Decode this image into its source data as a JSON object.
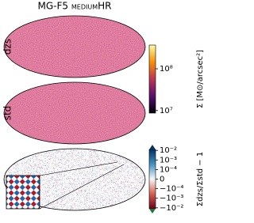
{
  "chart_data": [
    {
      "type": "map",
      "title": "MG-F5 mediumHR",
      "row_label": "dzs"
    },
    {
      "type": "map",
      "row_label": "std"
    },
    {
      "type": "colorbar",
      "colormap": "inferno",
      "log_scale": true,
      "ylim": [
        8700000,
        370000000
      ],
      "yticks": [
        {
          "value": 10000000,
          "label": "10⁷"
        },
        {
          "value": 100000000,
          "label": "10⁸"
        }
      ],
      "label": "Σ [M⊙/arcsec²]"
    },
    {
      "type": "colorbar",
      "colormap": "RdBu",
      "symlog_scale": true,
      "linthresh": 0.0001,
      "ylim": [
        -0.0125,
        0.0125
      ],
      "yticks": [
        {
          "value": -0.01,
          "label": "−10⁻²"
        },
        {
          "value": -0.001,
          "label": "−10⁻³"
        },
        {
          "value": -0.0001,
          "label": "−10⁻⁴"
        },
        0,
        {
          "value": 0.0001,
          "label": "10⁻⁴"
        },
        {
          "value": 0.001,
          "label": "10⁻³"
        },
        {
          "value": 0.01,
          "label": "10⁻²"
        }
      ],
      "label": "Σdzs/Σstd − 1"
    }
  ]
}
